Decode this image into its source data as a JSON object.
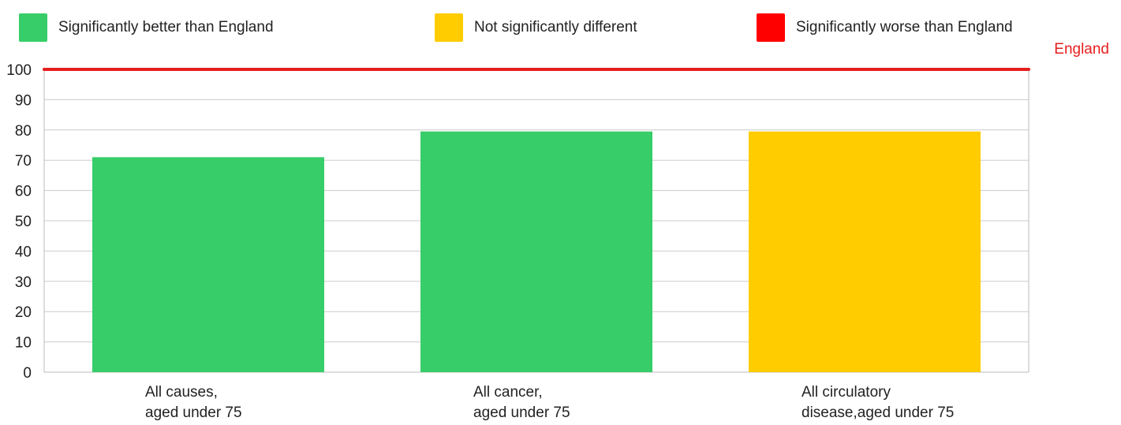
{
  "legend": {
    "items": [
      {
        "label": "Significantly better than England",
        "color": "#37cd69"
      },
      {
        "label": "Not significantly different",
        "color": "#ffcc00"
      },
      {
        "label": "Significantly worse than England",
        "color": "#ff0000"
      }
    ]
  },
  "chart_data": {
    "type": "bar",
    "categories": [
      [
        "All causes,",
        "aged under 75"
      ],
      [
        "All cancer,",
        "aged under 75"
      ],
      [
        "All circulatory",
        "disease,aged under 75"
      ]
    ],
    "values": [
      71,
      79.5,
      79.5
    ],
    "bar_colors": [
      "#37cd69",
      "#37cd69",
      "#ffcc00"
    ],
    "ylim": [
      0,
      100
    ],
    "yticks": [
      0,
      10,
      20,
      30,
      40,
      50,
      60,
      70,
      80,
      90,
      100
    ],
    "reference_line": {
      "label": "England",
      "value": 100,
      "color": "#e61e1e"
    },
    "grid": true,
    "legend_position": "top"
  }
}
